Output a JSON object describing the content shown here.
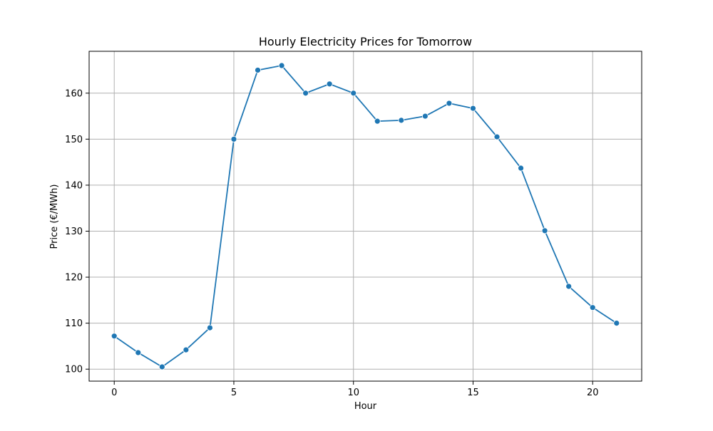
{
  "chart_data": {
    "type": "line",
    "title": "Hourly Electricity Prices for Tomorrow",
    "xlabel": "Hour",
    "ylabel": "Price (€/MWh)",
    "xlim": [
      -1.05,
      22.05
    ],
    "ylim": [
      97.4,
      169.1
    ],
    "xticks": [
      0,
      5,
      10,
      15,
      20
    ],
    "yticks": [
      100,
      110,
      120,
      130,
      140,
      150,
      160
    ],
    "grid": true,
    "series": [
      {
        "color": "#1f77b4",
        "marker": "circle",
        "x": [
          0,
          1,
          2,
          3,
          4,
          5,
          6,
          7,
          8,
          9,
          10,
          11,
          12,
          13,
          14,
          15,
          16,
          17,
          18,
          19,
          20,
          21
        ],
        "values": [
          107.2,
          103.6,
          100.5,
          104.2,
          109.0,
          150.0,
          165.0,
          166.0,
          160.0,
          162.0,
          160.0,
          153.9,
          154.1,
          155.0,
          157.8,
          156.7,
          150.5,
          143.7,
          130.1,
          118.0,
          113.4,
          110.0
        ]
      }
    ]
  }
}
